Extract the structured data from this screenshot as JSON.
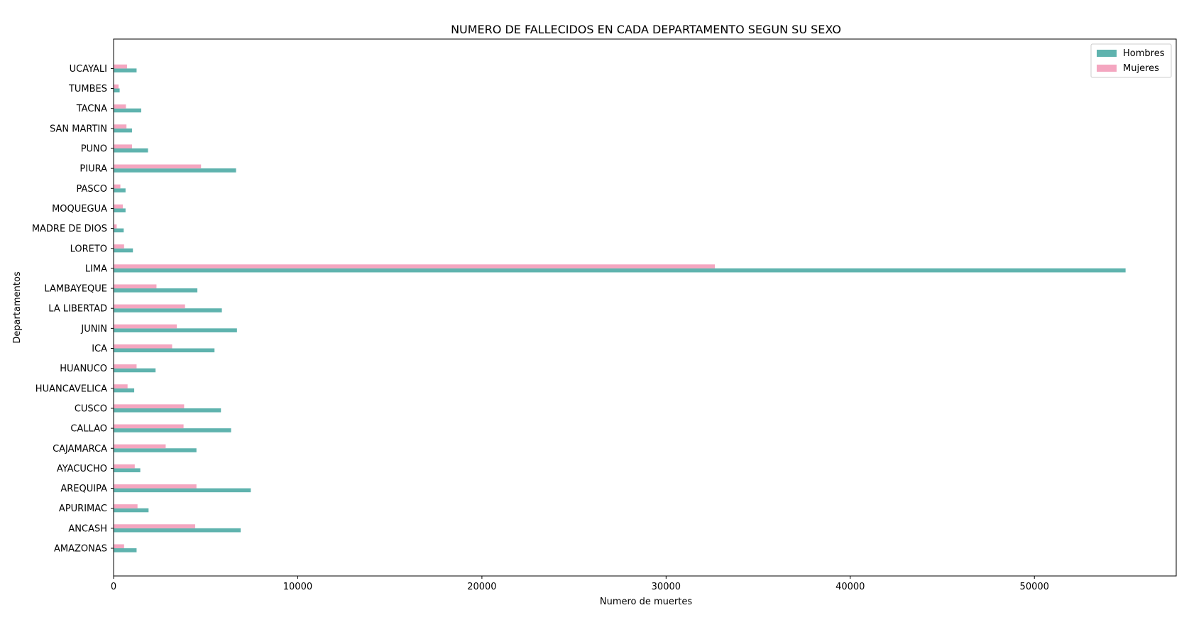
{
  "chart_data": {
    "type": "bar",
    "orientation": "horizontal",
    "title": "NUMERO DE FALLECIDOS EN CADA DEPARTAMENTO SEGUN SU SEXO",
    "xlabel": "Numero de muertes",
    "ylabel": "Departamentos",
    "xlim": [
      0,
      57700
    ],
    "xticks": [
      0,
      10000,
      20000,
      30000,
      40000,
      50000
    ],
    "legend_position": "top-right",
    "grid": false,
    "categories": [
      "AMAZONAS",
      "ANCASH",
      "APURIMAC",
      "AREQUIPA",
      "AYACUCHO",
      "CAJAMARCA",
      "CALLAO",
      "CUSCO",
      "HUANCAVELICA",
      "HUANUCO",
      "ICA",
      "JUNIN",
      "LA LIBERTAD",
      "LAMBAYEQUE",
      "LIMA",
      "LORETO",
      "MADRE DE DIOS",
      "MOQUEGUA",
      "PASCO",
      "PIURA",
      "PUNO",
      "SAN MARTIN",
      "TACNA",
      "TUMBES",
      "UCAYALI"
    ],
    "series": [
      {
        "name": "Hombres",
        "color": "#5fb3ae",
        "values": [
          1250,
          6900,
          1900,
          7450,
          1450,
          4500,
          6380,
          5830,
          1120,
          2280,
          5480,
          6700,
          5880,
          4550,
          54950,
          1050,
          550,
          650,
          650,
          6650,
          1870,
          1000,
          1500,
          330,
          1250
        ]
      },
      {
        "name": "Mujeres",
        "color": "#f4a6c0",
        "values": [
          570,
          4430,
          1300,
          4500,
          1150,
          2830,
          3800,
          3830,
          760,
          1250,
          3180,
          3430,
          3880,
          2330,
          32650,
          570,
          170,
          500,
          370,
          4750,
          1000,
          700,
          670,
          270,
          730
        ]
      }
    ]
  }
}
